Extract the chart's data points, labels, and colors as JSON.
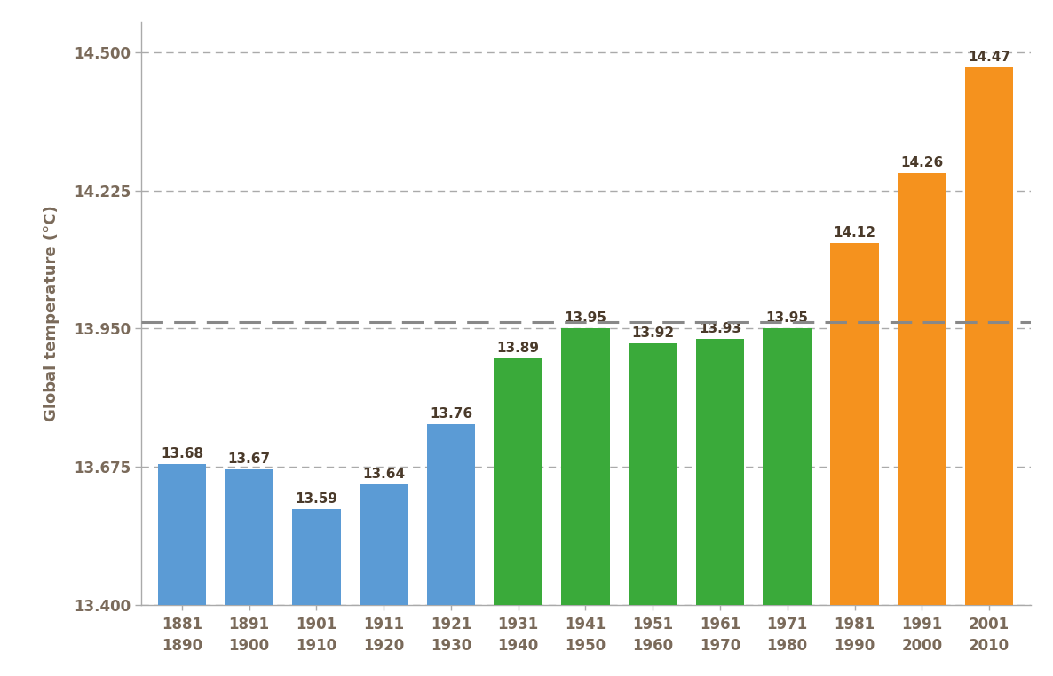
{
  "categories": [
    "1881\n1890",
    "1891\n1900",
    "1901\n1910",
    "1911\n1920",
    "1921\n1930",
    "1931\n1940",
    "1941\n1950",
    "1951\n1960",
    "1961\n1970",
    "1971\n1980",
    "1981\n1990",
    "1991\n2000",
    "2001\n2010"
  ],
  "values": [
    13.68,
    13.67,
    13.59,
    13.64,
    13.76,
    13.89,
    13.95,
    13.92,
    13.93,
    13.95,
    14.12,
    14.26,
    14.47
  ],
  "bar_colors": [
    "#5b9bd5",
    "#5b9bd5",
    "#5b9bd5",
    "#5b9bd5",
    "#5b9bd5",
    "#3aaa3a",
    "#3aaa3a",
    "#3aaa3a",
    "#3aaa3a",
    "#3aaa3a",
    "#f5921e",
    "#f5921e",
    "#f5921e"
  ],
  "ylabel": "Global temperature (°C)",
  "ylim": [
    13.4,
    14.56
  ],
  "yticks": [
    13.4,
    13.675,
    13.95,
    14.225,
    14.5
  ],
  "ytick_labels": [
    "13.400",
    "13.675",
    "13.950",
    "14.225",
    "14.500"
  ],
  "hline_y": 13.963,
  "hline_color": "#888888",
  "grid_color": "#aaaaaa",
  "background_color": "#ffffff",
  "tick_label_color": "#7a6a5a",
  "value_label_color": "#4a3a2a",
  "label_fontsize": 12,
  "value_label_fontsize": 11,
  "axis_label_fontsize": 13,
  "bar_width": 0.72
}
